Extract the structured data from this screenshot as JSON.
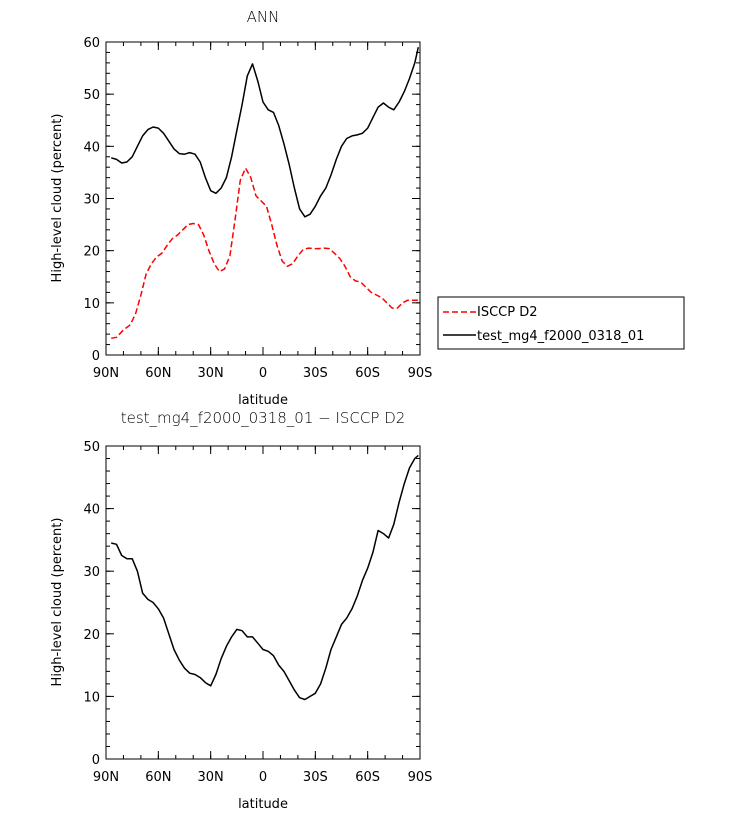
{
  "chart_data": [
    {
      "type": "line",
      "title": "ANN",
      "xlabel": "latitude",
      "ylabel": "High-level cloud (percent)",
      "ylim": [
        0,
        60
      ],
      "yticks": [
        0,
        10,
        20,
        30,
        40,
        50,
        60
      ],
      "xlim": [
        90,
        -90
      ],
      "xticks": [
        90,
        60,
        30,
        0,
        -30,
        -60,
        -90
      ],
      "xtick_labels": [
        "90N",
        "60N",
        "30N",
        "0",
        "30S",
        "60S",
        "90S"
      ],
      "grid": false,
      "legend_position": "right",
      "series": [
        {
          "name": "ISCCP D2",
          "color": "#ff0000",
          "dash": "dashed",
          "x": [
            87,
            84,
            80,
            76,
            73,
            70,
            67,
            64,
            61,
            58,
            55,
            52,
            49,
            46,
            43,
            40,
            37,
            34,
            31,
            28,
            25,
            22,
            19,
            16,
            13,
            10,
            7,
            4,
            1,
            -2,
            -5,
            -8,
            -11,
            -14,
            -17,
            -20,
            -23,
            -26,
            -29,
            -32,
            -35,
            -38,
            -41,
            -44,
            -47,
            -50,
            -53,
            -56,
            -59,
            -62,
            -65,
            -68,
            -71,
            -74,
            -77,
            -80,
            -83,
            -86,
            -89
          ],
          "y": [
            3.2,
            3.4,
            4.8,
            5.8,
            8.0,
            11.5,
            15.5,
            17.5,
            18.8,
            19.5,
            21.0,
            22.3,
            23.0,
            24.0,
            25.0,
            25.2,
            25.0,
            23.0,
            20.0,
            17.5,
            16.0,
            16.5,
            19.0,
            26.0,
            33.5,
            35.8,
            34.0,
            30.5,
            29.5,
            28.5,
            25.0,
            21.0,
            18.0,
            17.0,
            17.5,
            19.0,
            20.2,
            20.5,
            20.4,
            20.4,
            20.5,
            20.4,
            19.5,
            18.5,
            17.0,
            15.0,
            14.2,
            14.0,
            13.0,
            12.0,
            11.5,
            11.0,
            10.0,
            9.0,
            9.0,
            10.0,
            10.5,
            10.5,
            10.5
          ]
        },
        {
          "name": "test_mg4_f2000_0318_01",
          "color": "#000000",
          "dash": "solid",
          "x": [
            87,
            84,
            81,
            78,
            75,
            72,
            69,
            66,
            63,
            60,
            57,
            54,
            51,
            48,
            45,
            42,
            39,
            36,
            33,
            30,
            27,
            24,
            21,
            18,
            15,
            12,
            9,
            6,
            3,
            0,
            -3,
            -6,
            -9,
            -12,
            -15,
            -18,
            -21,
            -24,
            -27,
            -30,
            -33,
            -36,
            -39,
            -42,
            -45,
            -48,
            -51,
            -54,
            -57,
            -60,
            -63,
            -66,
            -69,
            -72,
            -75,
            -78,
            -81,
            -84,
            -87,
            -89
          ],
          "y": [
            37.8,
            37.5,
            36.8,
            37.0,
            38.0,
            40.0,
            42.0,
            43.2,
            43.7,
            43.5,
            42.5,
            41.0,
            39.5,
            38.6,
            38.5,
            38.8,
            38.5,
            37.0,
            34.0,
            31.5,
            31.0,
            32.0,
            34.0,
            38.0,
            43.0,
            48.0,
            53.5,
            55.8,
            52.5,
            48.5,
            47.0,
            46.5,
            44.0,
            40.5,
            36.5,
            32.0,
            28.0,
            26.5,
            27.0,
            28.5,
            30.5,
            32.0,
            34.5,
            37.5,
            40.0,
            41.5,
            42.0,
            42.2,
            42.5,
            43.5,
            45.5,
            47.5,
            48.3,
            47.5,
            47.0,
            48.5,
            50.5,
            53.0,
            56.0,
            59.0
          ]
        }
      ]
    },
    {
      "type": "line",
      "title": "test_mg4_f2000_0318_01 − ISCCP D2",
      "xlabel": "latitude",
      "ylabel": "High-level cloud (percent)",
      "ylim": [
        0,
        50
      ],
      "yticks": [
        0,
        10,
        20,
        30,
        40,
        50
      ],
      "xlim": [
        90,
        -90
      ],
      "xticks": [
        90,
        60,
        30,
        0,
        -30,
        -60,
        -90
      ],
      "xtick_labels": [
        "90N",
        "60N",
        "30N",
        "0",
        "30S",
        "60S",
        "90S"
      ],
      "grid": false,
      "series": [
        {
          "color": "#000000",
          "dash": "solid",
          "x": [
            87,
            84,
            81,
            78,
            75,
            72,
            69,
            66,
            63,
            60,
            57,
            54,
            51,
            48,
            45,
            42,
            39,
            36,
            33,
            30,
            27,
            24,
            21,
            18,
            15,
            12,
            9,
            6,
            3,
            0,
            -3,
            -6,
            -9,
            -12,
            -15,
            -18,
            -21,
            -24,
            -27,
            -30,
            -33,
            -36,
            -39,
            -42,
            -45,
            -48,
            -51,
            -54,
            -57,
            -60,
            -63,
            -66,
            -69,
            -72,
            -75,
            -78,
            -81,
            -84,
            -87,
            -89
          ],
          "y": [
            34.5,
            34.3,
            32.5,
            32.0,
            32.0,
            30.0,
            26.5,
            25.5,
            25.0,
            24.0,
            22.5,
            20.0,
            17.5,
            15.8,
            14.5,
            13.7,
            13.5,
            13.0,
            12.2,
            11.7,
            13.5,
            16.0,
            18.0,
            19.5,
            20.7,
            20.5,
            19.5,
            19.5,
            18.5,
            17.5,
            17.2,
            16.5,
            15.0,
            14.0,
            12.5,
            11.0,
            9.8,
            9.5,
            10.0,
            10.5,
            12.0,
            14.5,
            17.5,
            19.5,
            21.5,
            22.5,
            24.0,
            26.0,
            28.5,
            30.5,
            33.0,
            36.5,
            36.0,
            35.3,
            37.5,
            41.0,
            44.0,
            46.5,
            48.0,
            48.5
          ]
        }
      ]
    }
  ]
}
